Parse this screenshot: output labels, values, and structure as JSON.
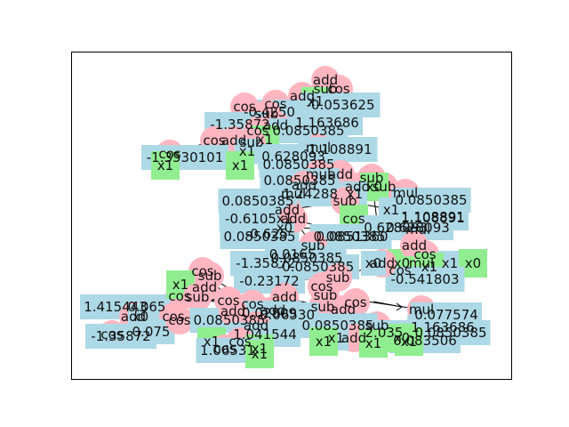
{
  "figure": {
    "colors": {
      "operator": "#ffb6c1",
      "variable": "#90ee90",
      "constant": "#add8e6",
      "frame": "#000000",
      "text": "#111111"
    },
    "node_kinds": {
      "operator": "circle",
      "variable": "square",
      "constant": "rectangle"
    }
  },
  "tree": {
    "nodes": [
      {
        "id": "n1",
        "kind": "operator",
        "label": "add"
      },
      {
        "id": "n2",
        "kind": "operator",
        "label": "sub"
      },
      {
        "id": "n3",
        "kind": "operator",
        "label": "cos"
      },
      {
        "id": "n4",
        "kind": "operator",
        "label": "add"
      },
      {
        "id": "n5",
        "kind": "variable",
        "label": "x1"
      },
      {
        "id": "n6",
        "kind": "constant",
        "label": "-0.053625"
      },
      {
        "id": "n7",
        "kind": "operator",
        "label": "cos"
      },
      {
        "id": "n8",
        "kind": "constant",
        "label": "-0.4250"
      },
      {
        "id": "n9",
        "kind": "operator",
        "label": "sub"
      },
      {
        "id": "n10",
        "kind": "operator",
        "label": "cos"
      },
      {
        "id": "n11",
        "kind": "constant",
        "label": "1.163686"
      },
      {
        "id": "n12",
        "kind": "constant",
        "label": "-1.35872"
      },
      {
        "id": "n13",
        "kind": "operator",
        "label": "add"
      },
      {
        "id": "n14",
        "kind": "operator",
        "label": "cos"
      },
      {
        "id": "n15",
        "kind": "constant",
        "label": "0.0850385"
      },
      {
        "id": "n16",
        "kind": "variable",
        "label": "x1"
      },
      {
        "id": "n17",
        "kind": "operator",
        "label": "add"
      },
      {
        "id": "n18",
        "kind": "operator",
        "label": "cos"
      },
      {
        "id": "n19",
        "kind": "operator",
        "label": "sub"
      },
      {
        "id": "n20",
        "kind": "constant",
        "label": "x1"
      },
      {
        "id": "n21",
        "kind": "operator",
        "label": "mul"
      },
      {
        "id": "n22",
        "kind": "constant",
        "label": "0.628093"
      },
      {
        "id": "n23",
        "kind": "constant",
        "label": "-1.108891"
      },
      {
        "id": "n24",
        "kind": "operator",
        "label": "cos"
      },
      {
        "id": "n25",
        "kind": "constant",
        "label": "-1.3530101"
      },
      {
        "id": "n26",
        "kind": "variable",
        "label": "x1"
      },
      {
        "id": "n27",
        "kind": "variable",
        "label": "x1"
      },
      {
        "id": "n28",
        "kind": "constant",
        "label": "0.0850385"
      },
      {
        "id": "n29",
        "kind": "operator",
        "label": "add"
      },
      {
        "id": "n30",
        "kind": "operator",
        "label": "mul"
      },
      {
        "id": "n31",
        "kind": "constant",
        "label": "0.0850385"
      },
      {
        "id": "n32",
        "kind": "operator",
        "label": "sub"
      },
      {
        "id": "n33",
        "kind": "operator",
        "label": "sub"
      },
      {
        "id": "n34",
        "kind": "operator",
        "label": "mul"
      },
      {
        "id": "n35",
        "kind": "constant",
        "label": "0.0850385"
      },
      {
        "id": "n36",
        "kind": "operator",
        "label": "add"
      },
      {
        "id": "n37",
        "kind": "variable",
        "label": "x0"
      },
      {
        "id": "n38",
        "kind": "operator",
        "label": "add"
      },
      {
        "id": "n39",
        "kind": "constant",
        "label": "x1"
      },
      {
        "id": "n40",
        "kind": "operator",
        "label": "mul"
      },
      {
        "id": "n41",
        "kind": "constant",
        "label": "1.24288"
      },
      {
        "id": "n42",
        "kind": "operator",
        "label": "add"
      },
      {
        "id": "n43",
        "kind": "constant",
        "label": "0.0850385"
      },
      {
        "id": "n44",
        "kind": "operator",
        "label": "sub"
      },
      {
        "id": "n45",
        "kind": "variable",
        "label": "cos"
      },
      {
        "id": "n46",
        "kind": "constant",
        "label": "x1"
      },
      {
        "id": "n47",
        "kind": "constant",
        "label": "1.108891"
      },
      {
        "id": "n48",
        "kind": "constant",
        "label": "-0.6105"
      },
      {
        "id": "n49",
        "kind": "constant",
        "label": "1.108891"
      },
      {
        "id": "n50",
        "kind": "constant",
        "label": "x1"
      },
      {
        "id": "n51",
        "kind": "operator",
        "label": "mul"
      },
      {
        "id": "n52",
        "kind": "constant",
        "label": "0.628093"
      },
      {
        "id": "n53",
        "kind": "constant",
        "label": "x0"
      },
      {
        "id": "n54",
        "kind": "constant",
        "label": "0.628093"
      },
      {
        "id": "n55",
        "kind": "constant",
        "label": "0.0850385"
      },
      {
        "id": "n56",
        "kind": "operator",
        "label": "add"
      },
      {
        "id": "n57",
        "kind": "constant",
        "label": "-0.625"
      },
      {
        "id": "n58",
        "kind": "constant",
        "label": "0.0851360"
      },
      {
        "id": "n59",
        "kind": "constant",
        "label": "0.0850385"
      },
      {
        "id": "n60",
        "kind": "operator",
        "label": "sub"
      },
      {
        "id": "n61",
        "kind": "constant",
        "label": "0.0850385"
      },
      {
        "id": "n62",
        "kind": "constant",
        "label": "0.0165"
      },
      {
        "id": "n63",
        "kind": "constant",
        "label": "-1.35872"
      },
      {
        "id": "n64",
        "kind": "constant",
        "label": "-0.0850385"
      },
      {
        "id": "n65",
        "kind": "operator",
        "label": "cos"
      },
      {
        "id": "n66",
        "kind": "constant",
        "label": "x1"
      },
      {
        "id": "n67",
        "kind": "variable",
        "label": "x0"
      },
      {
        "id": "n68",
        "kind": "operator",
        "label": "add"
      },
      {
        "id": "n69",
        "kind": "operator",
        "label": "mul"
      },
      {
        "id": "n70",
        "kind": "variable",
        "label": "cos"
      },
      {
        "id": "n71",
        "kind": "variable",
        "label": "x1"
      },
      {
        "id": "n72",
        "kind": "variable",
        "label": "x0"
      },
      {
        "id": "n73",
        "kind": "constant",
        "label": "-0.541803"
      },
      {
        "id": "n74",
        "kind": "operator",
        "label": "add"
      },
      {
        "id": "n75",
        "kind": "constant",
        "label": "x0"
      },
      {
        "id": "n76",
        "kind": "operator",
        "label": "sub"
      },
      {
        "id": "n77",
        "kind": "operator",
        "label": "cos"
      },
      {
        "id": "n78",
        "kind": "constant",
        "label": "-0.23172"
      },
      {
        "id": "n79",
        "kind": "operator",
        "label": "sub"
      },
      {
        "id": "n80",
        "kind": "operator",
        "label": "sub"
      },
      {
        "id": "n81",
        "kind": "operator",
        "label": "add"
      },
      {
        "id": "n82",
        "kind": "operator",
        "label": "add"
      },
      {
        "id": "n83",
        "kind": "operator",
        "label": "cos"
      },
      {
        "id": "n84",
        "kind": "operator",
        "label": "add"
      },
      {
        "id": "n85",
        "kind": "constant",
        "label": "1.415443"
      },
      {
        "id": "n86",
        "kind": "constant",
        "label": "0.065"
      },
      {
        "id": "n87",
        "kind": "operator",
        "label": "cos"
      },
      {
        "id": "n88",
        "kind": "operator",
        "label": "sub"
      },
      {
        "id": "n89",
        "kind": "variable",
        "label": "x1"
      },
      {
        "id": "n90",
        "kind": "operator",
        "label": "cos"
      },
      {
        "id": "n91",
        "kind": "operator",
        "label": "cos"
      },
      {
        "id": "n92",
        "kind": "operator",
        "label": "sub"
      },
      {
        "id": "n93",
        "kind": "operator",
        "label": "cos"
      },
      {
        "id": "n94",
        "kind": "operator",
        "label": "add"
      },
      {
        "id": "n95",
        "kind": "constant",
        "label": "x0"
      },
      {
        "id": "n96",
        "kind": "operator",
        "label": "cos"
      },
      {
        "id": "n97",
        "kind": "constant",
        "label": "-1.35872"
      },
      {
        "id": "n98",
        "kind": "constant",
        "label": "0.075"
      },
      {
        "id": "n99",
        "kind": "operator",
        "label": "cos"
      },
      {
        "id": "n100",
        "kind": "constant",
        "label": "0.0850385"
      },
      {
        "id": "n101",
        "kind": "constant",
        "label": "0.02809"
      },
      {
        "id": "n102",
        "kind": "constant",
        "label": "0.06530"
      },
      {
        "id": "n103",
        "kind": "operator",
        "label": "add"
      },
      {
        "id": "n104",
        "kind": "operator",
        "label": "add"
      },
      {
        "id": "n105",
        "kind": "variable",
        "label": "x1"
      },
      {
        "id": "n106",
        "kind": "constant",
        "label": "1.041544"
      },
      {
        "id": "n107",
        "kind": "operator",
        "label": "cos"
      },
      {
        "id": "n108",
        "kind": "operator",
        "label": "cos"
      },
      {
        "id": "n109",
        "kind": "variable",
        "label": "x1"
      },
      {
        "id": "n110",
        "kind": "constant",
        "label": "1.06531"
      },
      {
        "id": "n111",
        "kind": "variable",
        "label": "x1"
      },
      {
        "id": "n112",
        "kind": "operator",
        "label": "cos"
      },
      {
        "id": "n113",
        "kind": "operator",
        "label": "add"
      },
      {
        "id": "n114",
        "kind": "operator",
        "label": "sub"
      },
      {
        "id": "n115",
        "kind": "constant",
        "label": "0.0850385"
      },
      {
        "id": "n116",
        "kind": "operator",
        "label": "add"
      },
      {
        "id": "n117",
        "kind": "constant",
        "label": "x1"
      },
      {
        "id": "n118",
        "kind": "variable",
        "label": "x1"
      },
      {
        "id": "n119",
        "kind": "constant",
        "label": "2.035"
      },
      {
        "id": "n120",
        "kind": "variable",
        "label": "x1"
      },
      {
        "id": "n121",
        "kind": "operator",
        "label": "mul"
      },
      {
        "id": "n122",
        "kind": "constant",
        "label": "0.077574"
      },
      {
        "id": "n123",
        "kind": "constant",
        "label": "1.163686"
      },
      {
        "id": "n124",
        "kind": "constant",
        "label": "0.0850385"
      },
      {
        "id": "n125",
        "kind": "constant",
        "label": "0.083506"
      },
      {
        "id": "n126",
        "kind": "variable",
        "label": "x1"
      },
      {
        "id": "n127",
        "kind": "variable",
        "label": "x0"
      }
    ],
    "edges": [
      [
        "n1",
        "n2"
      ],
      [
        "n1",
        "n4"
      ],
      [
        "n2",
        "n3"
      ],
      [
        "n4",
        "n7"
      ],
      [
        "n4",
        "n6"
      ],
      [
        "n7",
        "n9"
      ],
      [
        "n9",
        "n10"
      ],
      [
        "n9",
        "n11"
      ],
      [
        "n7",
        "n13"
      ],
      [
        "n13",
        "n14"
      ],
      [
        "n13",
        "n15"
      ],
      [
        "n14",
        "n12"
      ],
      [
        "n14",
        "n16"
      ],
      [
        "n13",
        "n17"
      ],
      [
        "n17",
        "n18"
      ],
      [
        "n17",
        "n19"
      ],
      [
        "n18",
        "n24"
      ],
      [
        "n24",
        "n25"
      ],
      [
        "n24",
        "n26"
      ],
      [
        "n19",
        "n20"
      ],
      [
        "n19",
        "n21"
      ],
      [
        "n21",
        "n22"
      ],
      [
        "n21",
        "n23"
      ],
      [
        "n21",
        "n28"
      ],
      [
        "n28",
        "n29"
      ],
      [
        "n29",
        "n30"
      ],
      [
        "n30",
        "n31"
      ],
      [
        "n30",
        "n34"
      ],
      [
        "n29",
        "n32"
      ],
      [
        "n32",
        "n33"
      ],
      [
        "n33",
        "n36"
      ],
      [
        "n33",
        "n35"
      ],
      [
        "n36",
        "n37"
      ],
      [
        "n36",
        "n38"
      ],
      [
        "n38",
        "n39"
      ],
      [
        "n38",
        "n40"
      ],
      [
        "n40",
        "n41"
      ],
      [
        "n40",
        "n42"
      ],
      [
        "n42",
        "n43"
      ],
      [
        "n42",
        "n44"
      ],
      [
        "n44",
        "n45"
      ],
      [
        "n44",
        "n47"
      ],
      [
        "n42",
        "n48"
      ],
      [
        "n34",
        "n49"
      ],
      [
        "n34",
        "n51"
      ],
      [
        "n51",
        "n52"
      ],
      [
        "n51",
        "n53"
      ],
      [
        "n51",
        "n54"
      ],
      [
        "n42",
        "n56"
      ],
      [
        "n56",
        "n55"
      ],
      [
        "n56",
        "n57"
      ],
      [
        "n56",
        "n58"
      ],
      [
        "n56",
        "n60"
      ],
      [
        "n60",
        "n59"
      ],
      [
        "n60",
        "n61"
      ],
      [
        "n60",
        "n62"
      ],
      [
        "n60",
        "n63"
      ],
      [
        "n60",
        "n64"
      ],
      [
        "n34",
        "n65"
      ],
      [
        "n65",
        "n66"
      ],
      [
        "n65",
        "n67"
      ],
      [
        "n34",
        "n68"
      ],
      [
        "n68",
        "n69"
      ],
      [
        "n69",
        "n70"
      ],
      [
        "n69",
        "n71"
      ],
      [
        "n68",
        "n72"
      ],
      [
        "n69",
        "n73"
      ],
      [
        "n32",
        "n74"
      ],
      [
        "n74",
        "n75"
      ],
      [
        "n74",
        "n76"
      ],
      [
        "n76",
        "n77"
      ],
      [
        "n76",
        "n78"
      ],
      [
        "n77",
        "n79"
      ],
      [
        "n79",
        "n80"
      ],
      [
        "n80",
        "n81"
      ],
      [
        "n81",
        "n82"
      ],
      [
        "n82",
        "n83"
      ],
      [
        "n83",
        "n84"
      ],
      [
        "n84",
        "n85"
      ],
      [
        "n84",
        "n86"
      ],
      [
        "n83",
        "n87"
      ],
      [
        "n87",
        "n88"
      ],
      [
        "n88",
        "n89"
      ],
      [
        "n88",
        "n90"
      ],
      [
        "n87",
        "n91"
      ],
      [
        "n91",
        "n92"
      ],
      [
        "n92",
        "n93"
      ],
      [
        "n93",
        "n94"
      ],
      [
        "n94",
        "n95"
      ],
      [
        "n94",
        "n96"
      ],
      [
        "n96",
        "n97"
      ],
      [
        "n96",
        "n98"
      ],
      [
        "n93",
        "n99"
      ],
      [
        "n99",
        "n100"
      ],
      [
        "n99",
        "n101"
      ],
      [
        "n92",
        "n102"
      ],
      [
        "n81",
        "n103"
      ],
      [
        "n103",
        "n104"
      ],
      [
        "n104",
        "n105"
      ],
      [
        "n104",
        "n106"
      ],
      [
        "n103",
        "n107"
      ],
      [
        "n107",
        "n108"
      ],
      [
        "n108",
        "n109"
      ],
      [
        "n108",
        "n110"
      ],
      [
        "n107",
        "n111"
      ],
      [
        "n80",
        "n112"
      ],
      [
        "n112",
        "n113"
      ],
      [
        "n113",
        "n114"
      ],
      [
        "n114",
        "n115"
      ],
      [
        "n114",
        "n116"
      ],
      [
        "n116",
        "n117"
      ],
      [
        "n116",
        "n118"
      ],
      [
        "n113",
        "n119"
      ],
      [
        "n112",
        "n120"
      ],
      [
        "n79",
        "n121"
      ],
      [
        "n121",
        "n122"
      ],
      [
        "n121",
        "n123"
      ],
      [
        "n121",
        "n124"
      ],
      [
        "n121",
        "n125"
      ],
      [
        "n121",
        "n126"
      ],
      [
        "n80",
        "n127"
      ]
    ]
  }
}
